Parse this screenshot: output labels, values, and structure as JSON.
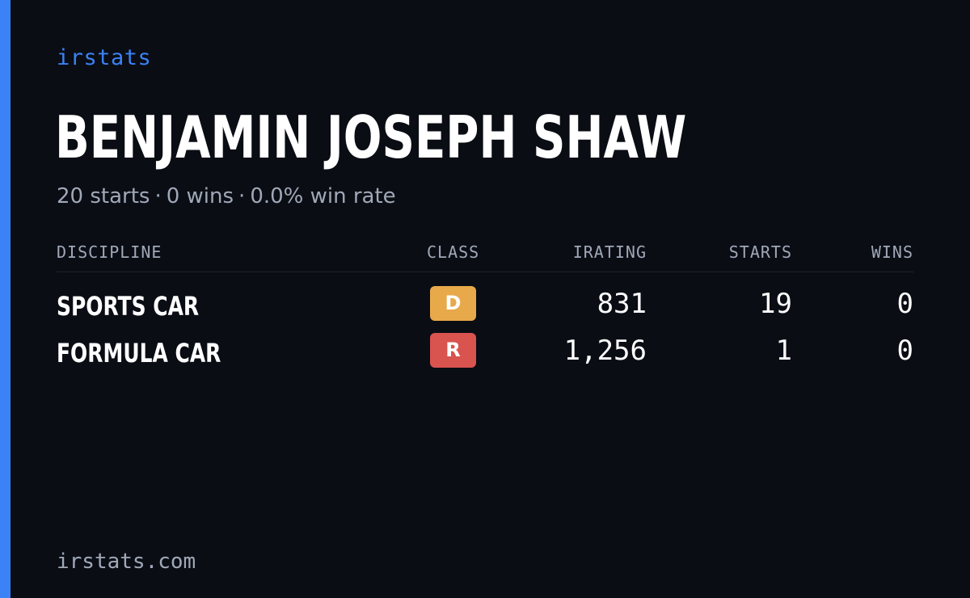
{
  "brand": "irstats",
  "player": {
    "name": "BENJAMIN JOSEPH SHAW",
    "summary": {
      "starts": "20 starts",
      "wins": "0 wins",
      "win_rate": "0.0% win rate",
      "separator": "·"
    }
  },
  "table": {
    "headers": {
      "discipline": "DISCIPLINE",
      "class": "CLASS",
      "irating": "IRATING",
      "starts": "STARTS",
      "wins": "WINS"
    },
    "rows": [
      {
        "discipline": "SPORTS CAR",
        "class": "D",
        "class_color": "#e8a94a",
        "irating": "831",
        "starts": "19",
        "wins": "0"
      },
      {
        "discipline": "FORMULA CAR",
        "class": "R",
        "class_color": "#d9534f",
        "irating": "1,256",
        "starts": "1",
        "wins": "0"
      }
    ]
  },
  "footer": "irstats.com",
  "colors": {
    "accent": "#3b82f6",
    "background": "#0a0d14",
    "muted_text": "#a0a8b8"
  }
}
